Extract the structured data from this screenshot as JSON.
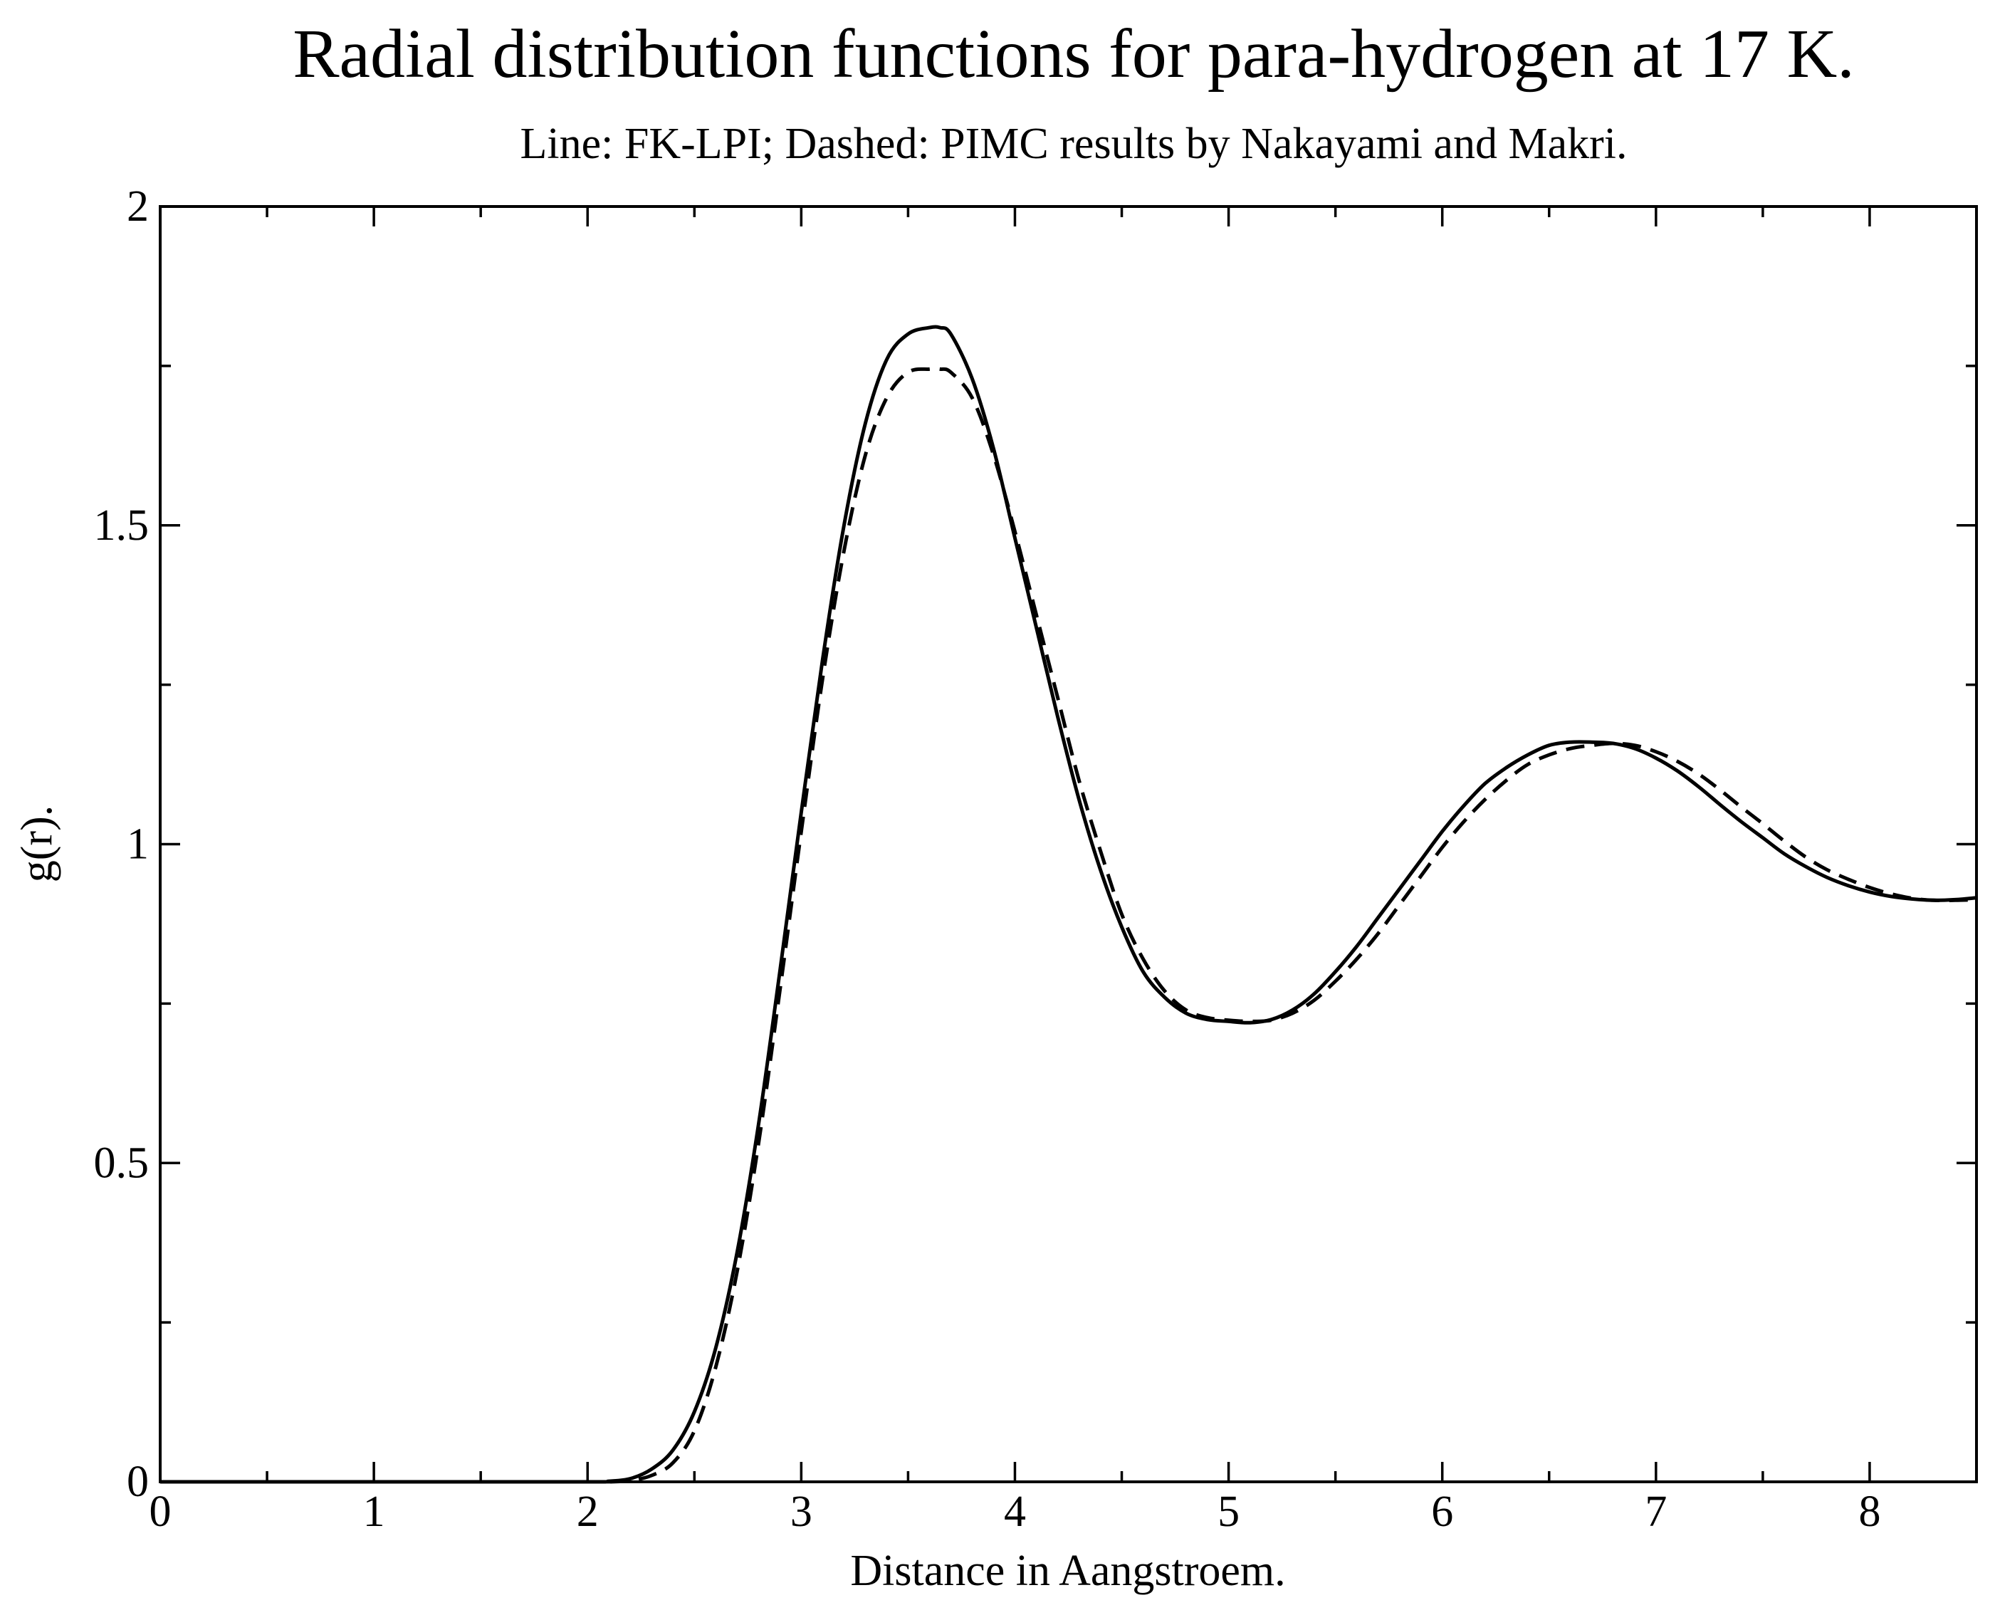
{
  "chart_data": {
    "type": "line",
    "title": "Radial distribution functions for para-hydrogen at 17 K.",
    "subtitle": "Line: FK-LPI; Dashed: PIMC results by Nakayami and Makri.",
    "xlabel": "Distance in Aangstroem.",
    "ylabel": "g(r).",
    "xlim": [
      0,
      8.5
    ],
    "ylim": [
      0,
      2
    ],
    "xticks": [
      "0",
      "1",
      "2",
      "3",
      "4",
      "5",
      "6",
      "7",
      "8"
    ],
    "yticks": [
      "0",
      "0.5",
      "1",
      "1.5",
      "2"
    ],
    "grid": false,
    "series": [
      {
        "name": "FK-LPI",
        "style": "solid",
        "color": "#000000",
        "x": [
          0,
          1,
          2,
          2.1,
          2.2,
          2.3,
          2.4,
          2.5,
          2.6,
          2.7,
          2.8,
          2.9,
          3.0,
          3.1,
          3.2,
          3.3,
          3.4,
          3.5,
          3.6,
          3.65,
          3.7,
          3.8,
          3.9,
          4.0,
          4.1,
          4.2,
          4.3,
          4.4,
          4.5,
          4.6,
          4.7,
          4.8,
          4.9,
          5.0,
          5.1,
          5.2,
          5.3,
          5.4,
          5.5,
          5.6,
          5.7,
          5.8,
          5.9,
          6.0,
          6.1,
          6.2,
          6.3,
          6.4,
          6.5,
          6.6,
          6.7,
          6.8,
          6.9,
          7.0,
          7.1,
          7.2,
          7.3,
          7.4,
          7.5,
          7.6,
          7.7,
          7.8,
          7.9,
          8.0,
          8.1,
          8.2,
          8.3,
          8.4,
          8.5
        ],
        "y": [
          0,
          0,
          0,
          0.001,
          0.005,
          0.02,
          0.05,
          0.11,
          0.21,
          0.36,
          0.56,
          0.8,
          1.05,
          1.29,
          1.5,
          1.66,
          1.76,
          1.8,
          1.81,
          1.81,
          1.8,
          1.73,
          1.62,
          1.48,
          1.34,
          1.2,
          1.07,
          0.96,
          0.87,
          0.8,
          0.76,
          0.735,
          0.725,
          0.722,
          0.72,
          0.725,
          0.74,
          0.765,
          0.8,
          0.84,
          0.885,
          0.93,
          0.975,
          1.02,
          1.06,
          1.095,
          1.12,
          1.14,
          1.155,
          1.16,
          1.16,
          1.158,
          1.15,
          1.135,
          1.115,
          1.09,
          1.062,
          1.035,
          1.01,
          0.985,
          0.965,
          0.948,
          0.935,
          0.925,
          0.918,
          0.914,
          0.912,
          0.913,
          0.916
        ]
      },
      {
        "name": "PIMC (Nakayami and Makri)",
        "style": "dashed",
        "color": "#000000",
        "x": [
          0,
          1,
          2,
          2.1,
          2.2,
          2.3,
          2.4,
          2.5,
          2.6,
          2.7,
          2.8,
          2.9,
          3.0,
          3.1,
          3.2,
          3.3,
          3.4,
          3.5,
          3.6,
          3.65,
          3.7,
          3.8,
          3.9,
          4.0,
          4.1,
          4.2,
          4.3,
          4.4,
          4.5,
          4.6,
          4.7,
          4.8,
          4.9,
          5.0,
          5.1,
          5.2,
          5.3,
          5.4,
          5.5,
          5.6,
          5.7,
          5.8,
          5.9,
          6.0,
          6.1,
          6.2,
          6.3,
          6.4,
          6.5,
          6.6,
          6.7,
          6.8,
          6.9,
          7.0,
          7.1,
          7.2,
          7.3,
          7.4,
          7.5,
          7.6,
          7.7,
          7.8,
          7.9,
          8.0,
          8.1,
          8.2,
          8.3,
          8.4,
          8.5
        ],
        "y": [
          0,
          0,
          0,
          0,
          0.002,
          0.01,
          0.03,
          0.08,
          0.18,
          0.33,
          0.53,
          0.77,
          1.02,
          1.26,
          1.46,
          1.61,
          1.7,
          1.74,
          1.745,
          1.745,
          1.74,
          1.7,
          1.61,
          1.49,
          1.36,
          1.23,
          1.1,
          0.99,
          0.89,
          0.82,
          0.77,
          0.74,
          0.728,
          0.724,
          0.722,
          0.724,
          0.735,
          0.755,
          0.785,
          0.82,
          0.86,
          0.905,
          0.95,
          0.995,
          1.035,
          1.07,
          1.1,
          1.125,
          1.14,
          1.15,
          1.155,
          1.158,
          1.155,
          1.145,
          1.13,
          1.11,
          1.085,
          1.058,
          1.032,
          1.005,
          0.98,
          0.96,
          0.945,
          0.932,
          0.922,
          0.915,
          0.912,
          0.912,
          0.913
        ]
      }
    ]
  }
}
